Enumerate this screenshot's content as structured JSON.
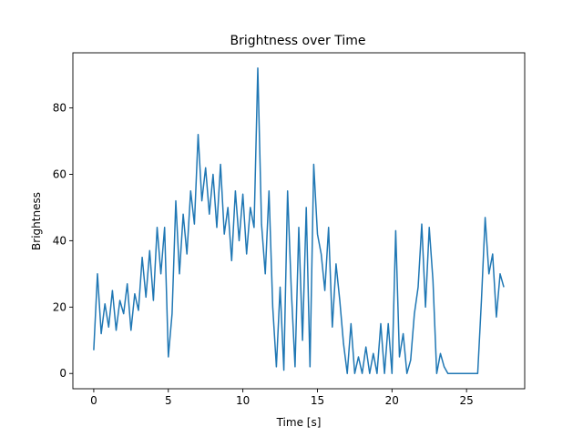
{
  "chart_data": {
    "type": "line",
    "title": "Brightness over Time",
    "xlabel": "Time [s]",
    "ylabel": "Brightness",
    "xlim": [
      -1.4,
      28.9
    ],
    "ylim": [
      -4.6,
      96.6
    ],
    "xticks": [
      0,
      5,
      10,
      15,
      20,
      25
    ],
    "yticks": [
      0,
      20,
      40,
      60,
      80
    ],
    "grid": false,
    "line_color": "#1f77b4",
    "x_start": 0,
    "x_step": 0.25,
    "series": [
      {
        "name": "Brightness",
        "values": [
          7,
          30,
          12,
          21,
          14,
          25,
          13,
          22,
          18,
          27,
          13,
          24,
          19,
          35,
          23,
          37,
          22,
          44,
          30,
          44,
          5,
          18,
          52,
          30,
          48,
          36,
          55,
          45,
          72,
          52,
          62,
          48,
          60,
          44,
          63,
          42,
          50,
          34,
          55,
          40,
          54,
          36,
          50,
          44,
          92,
          45,
          30,
          55,
          20,
          2,
          26,
          1,
          55,
          25,
          2,
          44,
          10,
          50,
          2,
          63,
          42,
          36,
          25,
          44,
          14,
          33,
          22,
          9,
          0,
          15,
          0,
          5,
          0,
          8,
          0,
          6,
          0,
          15,
          0,
          15,
          0,
          43,
          5,
          12,
          0,
          4,
          18,
          26,
          45,
          20,
          44,
          28,
          0,
          6,
          2,
          0,
          0,
          0,
          0,
          0,
          0,
          0,
          0,
          0,
          22,
          47,
          30,
          36,
          17,
          30,
          26
        ]
      }
    ]
  }
}
